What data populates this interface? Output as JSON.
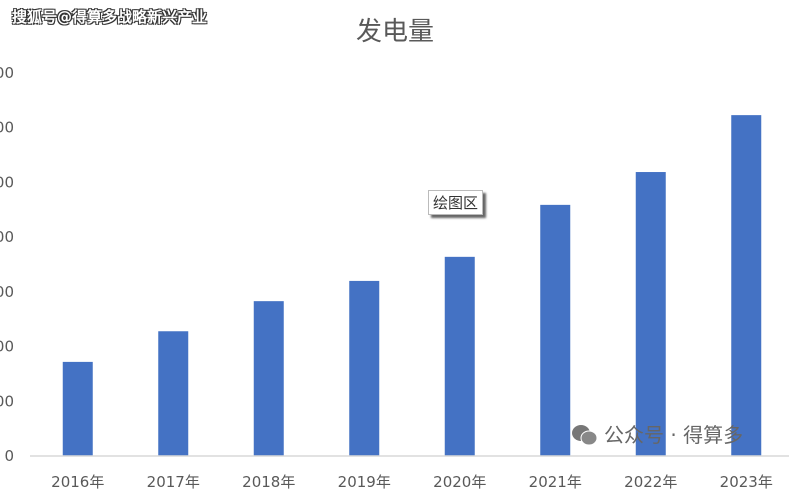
{
  "watermark_top": "搜狐号@得算多战略新兴产业",
  "watermark_bottom": "公众号 · 得算多",
  "tooltip": "绘图区",
  "colors": {
    "bar": "#4472C4",
    "axis": "#d9d9d9",
    "text": "#595959"
  },
  "chart_data": {
    "type": "bar",
    "title": "发电量",
    "xlabel": "",
    "ylabel": "",
    "categories": [
      "2016年",
      "2017年",
      "2018年",
      "2019年",
      "2020年",
      "2021年",
      "2022年",
      "2023年"
    ],
    "values": [
      172,
      228,
      283,
      320,
      364,
      459,
      519,
      623
    ],
    "ylim": [
      0,
      700
    ],
    "yticks": [
      0,
      100,
      200,
      300,
      400,
      500,
      600,
      700
    ],
    "ytick_labels": [
      "0",
      "00",
      "00",
      "00",
      "00",
      "00",
      "00",
      "00"
    ],
    "grid": false,
    "legend": "none"
  }
}
